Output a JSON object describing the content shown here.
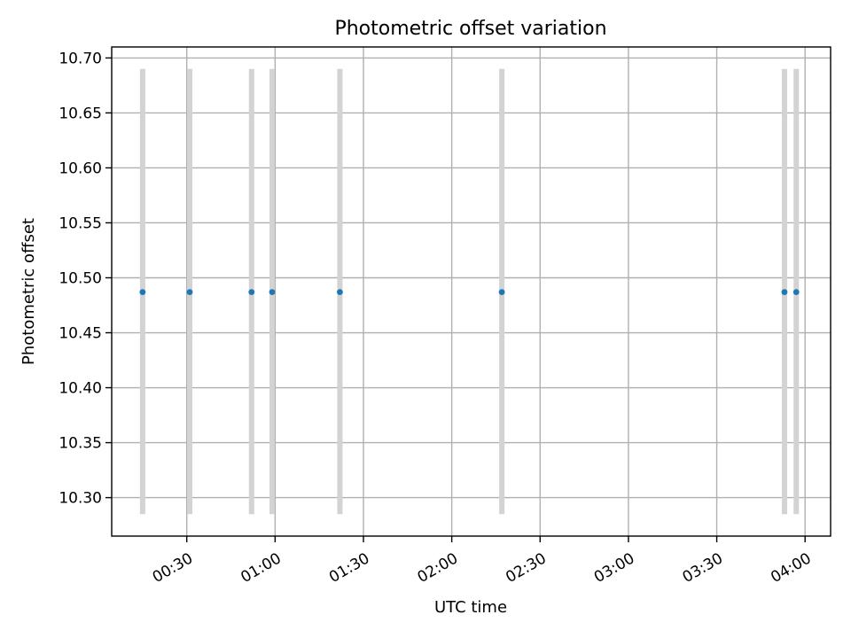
{
  "chart_data": {
    "type": "scatter",
    "title": "Photometric offset variation",
    "xlabel": "UTC time",
    "ylabel": "Photometric offset",
    "xlim": [
      "00:04:30",
      "04:08:40"
    ],
    "ylim": [
      10.265,
      10.71
    ],
    "x_ticks": [
      "00:30",
      "01:00",
      "01:30",
      "02:00",
      "02:30",
      "03:00",
      "03:30",
      "04:00"
    ],
    "y_ticks": [
      "10.30",
      "10.35",
      "10.40",
      "10.45",
      "10.50",
      "10.55",
      "10.60",
      "10.65",
      "10.70"
    ],
    "grid": true,
    "errorbar_color": "#d3d3d3",
    "marker_color": "#1f77b4",
    "series": [
      {
        "x": [
          "00:15",
          "00:31",
          "00:52",
          "00:59",
          "01:22",
          "02:17",
          "03:53",
          "03:57"
        ],
        "y": [
          10.487,
          10.487,
          10.487,
          10.487,
          10.487,
          10.487,
          10.487,
          10.487
        ],
        "yerr_low": [
          10.285,
          10.285,
          10.285,
          10.285,
          10.285,
          10.285,
          10.285,
          10.285
        ],
        "yerr_high": [
          10.69,
          10.69,
          10.69,
          10.69,
          10.69,
          10.69,
          10.69,
          10.69
        ]
      }
    ]
  }
}
